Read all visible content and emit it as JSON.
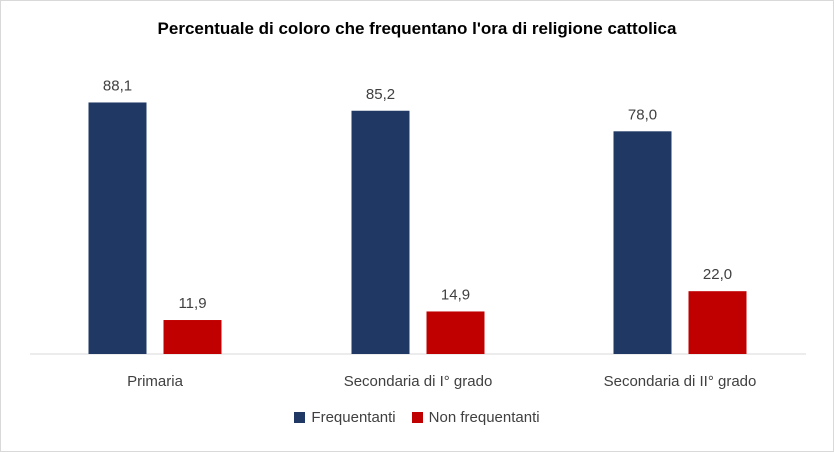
{
  "chart_data": {
    "type": "bar",
    "title": "Percentuale di coloro che frequentano l'ora di religione cattolica",
    "categories": [
      "Primaria",
      "Secondaria di I° grado",
      "Secondaria di II° grado"
    ],
    "series": [
      {
        "name": "Frequentanti",
        "values": [
          88.1,
          85.2,
          78.0
        ],
        "labels": [
          "88,1",
          "85,2",
          "78,0"
        ],
        "color": "#1f3864"
      },
      {
        "name": "Non frequentanti",
        "values": [
          11.9,
          14.9,
          22.0
        ],
        "labels": [
          "11,9",
          "14,9",
          "22,0"
        ],
        "color": "#c00000"
      }
    ],
    "ylim": [
      0,
      100
    ],
    "xlabel": "",
    "ylabel": "",
    "grid": false,
    "legend": "bottom"
  }
}
